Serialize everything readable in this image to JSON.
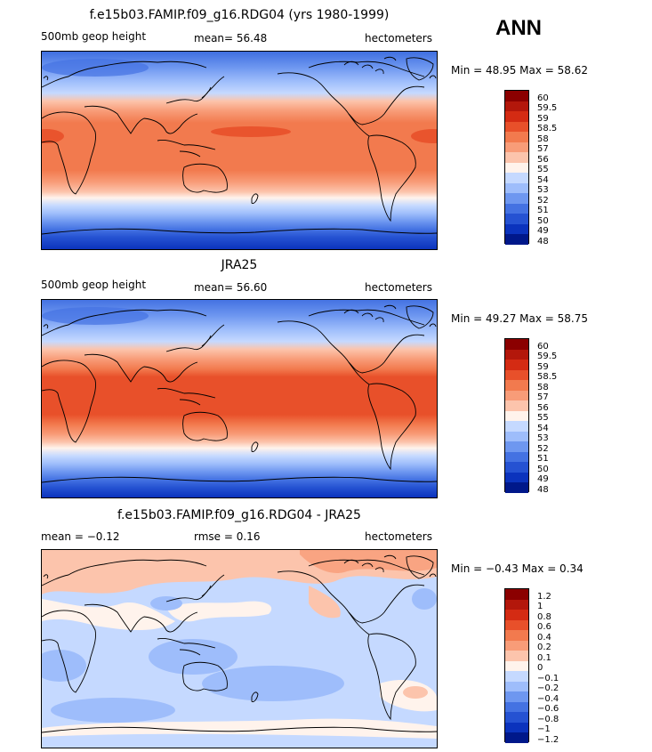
{
  "season": "ANN",
  "panels": [
    {
      "title": "f.e15b03.FAMIP.f09_g16.RDG04 (yrs 1980-1999)",
      "left_label": "500mb geop height",
      "stat_label": "mean=  56.48",
      "units": "hectometers",
      "minmax": "Min =  48.95 Max =  58.62",
      "legend": [
        "60",
        "59.5",
        "59",
        "58.5",
        "58",
        "57",
        "56",
        "55",
        "54",
        "53",
        "52",
        "51",
        "50",
        "49",
        "48"
      ],
      "colors": [
        "#8b0000",
        "#b3170b",
        "#d42b13",
        "#e8502a",
        "#f27a4e",
        "#f89c78",
        "#fcc4ac",
        "#fff3ec",
        "#c5d9ff",
        "#9ebdfb",
        "#6e97f0",
        "#4472e2",
        "#2552d2",
        "#0b33bd",
        "#00188a"
      ]
    },
    {
      "title": "JRA25",
      "left_label": "500mb geop height",
      "stat_label": "mean=  56.60",
      "units": "hectometers",
      "minmax": "Min =  49.27 Max =  58.75",
      "legend": [
        "60",
        "59.5",
        "59",
        "58.5",
        "58",
        "57",
        "56",
        "55",
        "54",
        "53",
        "52",
        "51",
        "50",
        "49",
        "48"
      ],
      "colors": [
        "#8b0000",
        "#b3170b",
        "#d42b13",
        "#e8502a",
        "#f27a4e",
        "#f89c78",
        "#fcc4ac",
        "#fff3ec",
        "#c5d9ff",
        "#9ebdfb",
        "#6e97f0",
        "#4472e2",
        "#2552d2",
        "#0b33bd",
        "#00188a"
      ]
    },
    {
      "title": "f.e15b03.FAMIP.f09_g16.RDG04 - JRA25",
      "left_label": "mean =  −0.12",
      "stat_label": "rmse =   0.16",
      "units": "hectometers",
      "minmax": "Min =  −0.43 Max =   0.34",
      "legend": [
        "1.2",
        "1",
        "0.8",
        "0.6",
        "0.4",
        "0.2",
        "0.1",
        "0",
        "−0.1",
        "−0.2",
        "−0.4",
        "−0.6",
        "−0.8",
        "−1",
        "−1.2"
      ],
      "colors": [
        "#8b0000",
        "#b3170b",
        "#d42b13",
        "#e8502a",
        "#f27a4e",
        "#f89c78",
        "#fcc4ac",
        "#fff3ec",
        "#c5d9ff",
        "#9ebdfb",
        "#6e97f0",
        "#4472e2",
        "#2552d2",
        "#0b33bd",
        "#00188a"
      ]
    }
  ]
}
